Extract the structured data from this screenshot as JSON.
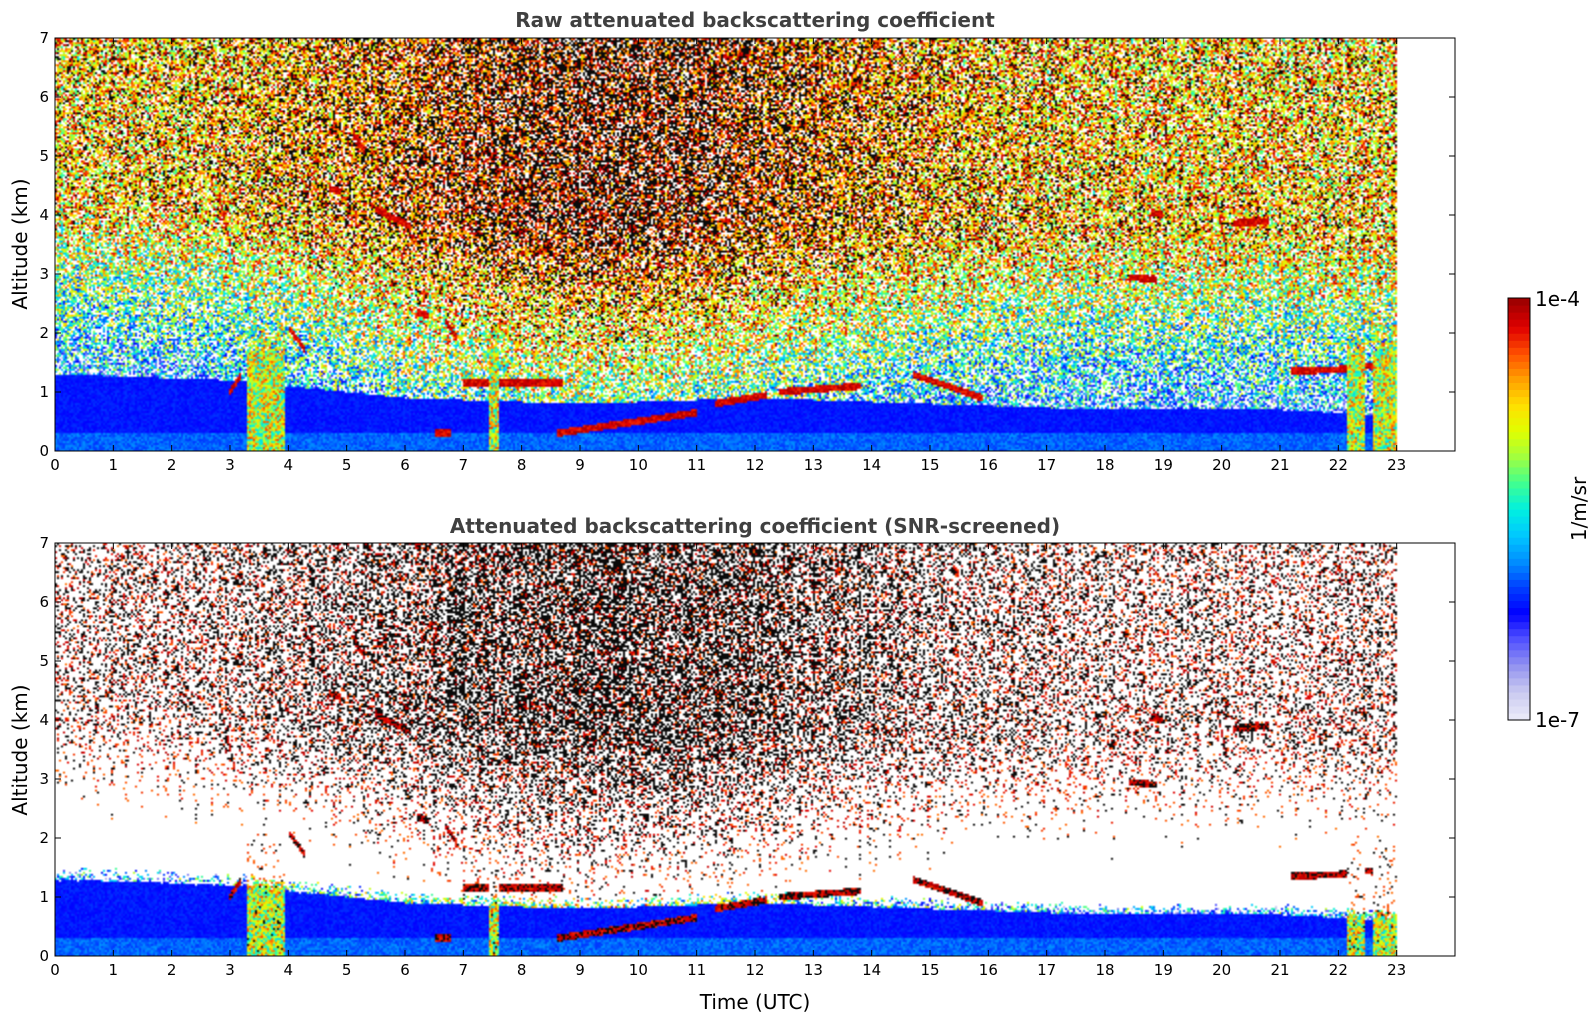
{
  "chart_data": [
    {
      "type": "heatmap",
      "title": "Raw attenuated backscattering coefficient",
      "xlabel": "",
      "ylabel": "Altitude (km)",
      "xlim": [
        0,
        24
      ],
      "ylim": [
        0,
        7
      ],
      "x_ticks": [
        "0",
        "1",
        "2",
        "3",
        "4",
        "5",
        "6",
        "7",
        "8",
        "9",
        "10",
        "11",
        "12",
        "13",
        "14",
        "15",
        "16",
        "17",
        "18",
        "19",
        "20",
        "21",
        "22",
        "23"
      ],
      "y_ticks": [
        "0",
        "1",
        "2",
        "3",
        "4",
        "5",
        "6",
        "7"
      ],
      "data_end_hour": 23,
      "mode": "raw",
      "features": {
        "boundary_layer_top_km": [
          [
            0,
            1.3
          ],
          [
            3,
            1.2
          ],
          [
            6,
            0.9
          ],
          [
            9,
            0.8
          ],
          [
            12,
            0.9
          ],
          [
            15,
            0.8
          ],
          [
            18,
            0.7
          ],
          [
            21,
            0.7
          ],
          [
            23,
            0.6
          ]
        ],
        "cloud_layers": [
          {
            "t": [
              7.0,
              8.7
            ],
            "alt_km": 1.15
          },
          {
            "t": [
              8.6,
              11.0
            ],
            "alt_km": [
              0.3,
              0.65
            ]
          },
          {
            "t": [
              14.7,
              15.9
            ],
            "alt_km": [
              1.3,
              0.9
            ]
          },
          {
            "t": [
              21.2,
              23.0
            ],
            "alt_km": 1.4
          },
          {
            "t": [
              5.5,
              6.1
            ],
            "alt_km": 3.8
          },
          {
            "t": [
              18.4,
              18.9
            ],
            "alt_km": 2.9
          },
          {
            "t": [
              20.2,
              20.7
            ],
            "alt_km": 3.85
          }
        ],
        "precipitation_streaks_h": [
          3.4,
          3.7,
          7.5,
          22.3,
          22.75
        ]
      }
    },
    {
      "type": "heatmap",
      "title": "Attenuated backscattering coefficient (SNR-screened)",
      "xlabel": "Time (UTC)",
      "ylabel": "Altitude (km)",
      "xlim": [
        0,
        24
      ],
      "ylim": [
        0,
        7
      ],
      "x_ticks": [
        "0",
        "1",
        "2",
        "3",
        "4",
        "5",
        "6",
        "7",
        "8",
        "9",
        "10",
        "11",
        "12",
        "13",
        "14",
        "15",
        "16",
        "17",
        "18",
        "19",
        "20",
        "21",
        "22",
        "23"
      ],
      "y_ticks": [
        "0",
        "1",
        "2",
        "3",
        "4",
        "5",
        "6",
        "7"
      ],
      "data_end_hour": 23,
      "mode": "screened"
    }
  ],
  "colorbar": {
    "label": "1/m/sr",
    "max_label": "1e-4",
    "min_label": "1e-7",
    "colors": [
      "#e8e8f8",
      "#c8c8f0",
      "#9090f0",
      "#5050ff",
      "#0000ff",
      "#0040ff",
      "#0090ff",
      "#00c8ff",
      "#00f0e0",
      "#40ff90",
      "#a0ff40",
      "#e0ff00",
      "#ffe000",
      "#ffa000",
      "#ff5000",
      "#e00000",
      "#a00000"
    ]
  }
}
